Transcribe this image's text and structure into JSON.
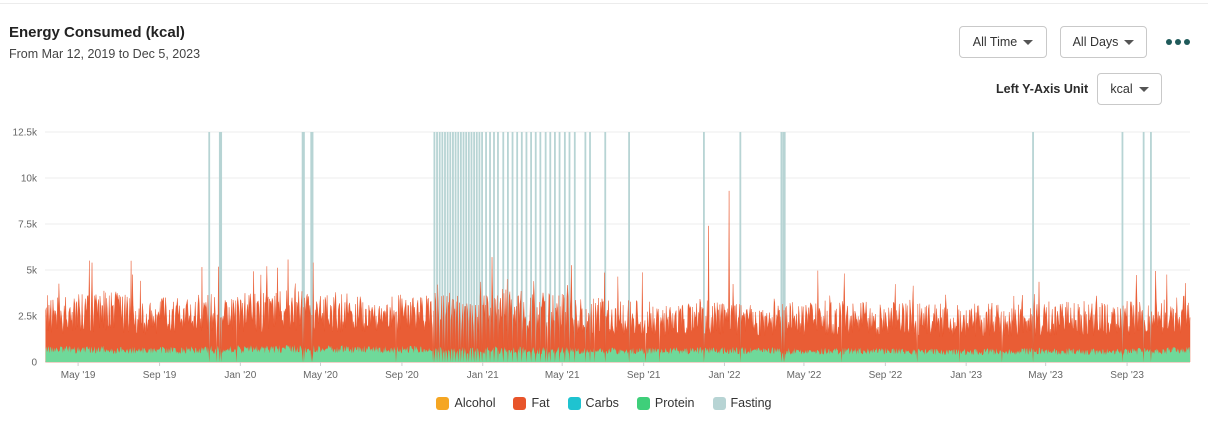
{
  "header": {
    "title": "Energy Consumed (kcal)",
    "subtitle": "From Mar 12, 2019 to Dec 5, 2023"
  },
  "controls": {
    "range_label": "All Time",
    "days_label": "All Days",
    "unit_caption": "Left Y-Axis Unit",
    "unit_label": "kcal"
  },
  "chart_data": {
    "type": "area",
    "stacked": true,
    "title": "Energy Consumed (kcal)",
    "x_start": "2019-03-12",
    "x_end": "2023-12-05",
    "ylim": [
      0,
      12500
    ],
    "y_ticks": [
      {
        "value": 0,
        "label": "0"
      },
      {
        "value": 2500,
        "label": "2.5k"
      },
      {
        "value": 5000,
        "label": "5k"
      },
      {
        "value": 7500,
        "label": "7.5k"
      },
      {
        "value": 10000,
        "label": "10k"
      },
      {
        "value": 12500,
        "label": "12.5k"
      }
    ],
    "x_ticks": [
      {
        "date": "2019-05-01",
        "label": "May '19"
      },
      {
        "date": "2019-09-01",
        "label": "Sep '19"
      },
      {
        "date": "2020-01-01",
        "label": "Jan '20"
      },
      {
        "date": "2020-05-01",
        "label": "May '20"
      },
      {
        "date": "2020-09-01",
        "label": "Sep '20"
      },
      {
        "date": "2021-01-01",
        "label": "Jan '21"
      },
      {
        "date": "2021-05-01",
        "label": "May '21"
      },
      {
        "date": "2021-09-01",
        "label": "Sep '21"
      },
      {
        "date": "2022-01-01",
        "label": "Jan '22"
      },
      {
        "date": "2022-05-01",
        "label": "May '22"
      },
      {
        "date": "2022-09-01",
        "label": "Sep '22"
      },
      {
        "date": "2023-01-01",
        "label": "Jan '23"
      },
      {
        "date": "2023-05-01",
        "label": "May '23"
      },
      {
        "date": "2023-09-01",
        "label": "Sep '23"
      }
    ],
    "grid": true,
    "legend_position": "bottom",
    "series": [
      {
        "name": "Alcohol",
        "color": "#f5a623"
      },
      {
        "name": "Fat",
        "color": "#e8542a"
      },
      {
        "name": "Carbs",
        "color": "#1fc3d0"
      },
      {
        "name": "Protein",
        "color": "#3fcf7a"
      },
      {
        "name": "Fasting",
        "color": "#b7d4d4"
      }
    ],
    "daily_totals": [
      {
        "x": "2019-04-20",
        "y": 2800
      },
      {
        "x": "2019-06-15",
        "y": 3000
      },
      {
        "x": "2019-08-15",
        "y": 2700
      },
      {
        "x": "2019-10-15",
        "y": 2900
      },
      {
        "x": "2019-12-15",
        "y": 2800
      },
      {
        "x": "2020-02-15",
        "y": 3000
      },
      {
        "x": "2020-04-15",
        "y": 3000
      },
      {
        "x": "2020-06-15",
        "y": 2900
      },
      {
        "x": "2020-08-15",
        "y": 2800
      },
      {
        "x": "2020-10-15",
        "y": 2900
      },
      {
        "x": "2020-12-15",
        "y": 2900
      },
      {
        "x": "2021-02-15",
        "y": 3100
      },
      {
        "x": "2021-04-15",
        "y": 2900
      },
      {
        "x": "2021-06-15",
        "y": 2700
      },
      {
        "x": "2021-08-15",
        "y": 2600
      },
      {
        "x": "2021-10-15",
        "y": 2500
      },
      {
        "x": "2021-12-15",
        "y": 2700
      },
      {
        "x": "2022-02-15",
        "y": 2500
      },
      {
        "x": "2022-04-15",
        "y": 2500
      },
      {
        "x": "2022-06-15",
        "y": 2600
      },
      {
        "x": "2022-08-15",
        "y": 2500
      },
      {
        "x": "2022-10-15",
        "y": 2600
      },
      {
        "x": "2022-12-15",
        "y": 2400
      },
      {
        "x": "2023-02-15",
        "y": 2500
      },
      {
        "x": "2023-04-15",
        "y": 2500
      },
      {
        "x": "2023-06-15",
        "y": 2600
      },
      {
        "x": "2023-08-15",
        "y": 2500
      },
      {
        "x": "2023-10-15",
        "y": 2700
      },
      {
        "x": "2023-12-01",
        "y": 2800
      }
    ],
    "daily_protein": [
      {
        "x": "2019-04-20",
        "y": 750
      },
      {
        "x": "2019-08-15",
        "y": 700
      },
      {
        "x": "2019-12-15",
        "y": 750
      },
      {
        "x": "2020-04-15",
        "y": 800
      },
      {
        "x": "2020-08-15",
        "y": 750
      },
      {
        "x": "2020-12-15",
        "y": 700
      },
      {
        "x": "2021-04-15",
        "y": 700
      },
      {
        "x": "2021-08-15",
        "y": 650
      },
      {
        "x": "2021-12-15",
        "y": 700
      },
      {
        "x": "2022-04-15",
        "y": 650
      },
      {
        "x": "2022-08-15",
        "y": 650
      },
      {
        "x": "2022-12-15",
        "y": 600
      },
      {
        "x": "2023-04-15",
        "y": 650
      },
      {
        "x": "2023-08-15",
        "y": 600
      },
      {
        "x": "2023-12-01",
        "y": 700
      }
    ],
    "peaks": [
      {
        "x": "2019-05-22",
        "y": 5400
      },
      {
        "x": "2019-07-20",
        "y": 5500
      },
      {
        "x": "2020-02-10",
        "y": 5200
      },
      {
        "x": "2020-04-20",
        "y": 5400
      },
      {
        "x": "2021-01-15",
        "y": 5700
      },
      {
        "x": "2021-02-01",
        "y": 5500
      },
      {
        "x": "2022-01-08",
        "y": 9300
      },
      {
        "x": "2021-12-08",
        "y": 7400
      },
      {
        "x": "2023-08-25",
        "y": 5700
      }
    ],
    "fasting_days": [
      "2019-11-15",
      "2019-12-01",
      "2019-12-03",
      "2020-04-04",
      "2020-04-06",
      "2020-04-17",
      "2020-04-19",
      "2020-10-20",
      "2020-10-24",
      "2020-10-28",
      "2020-11-01",
      "2020-11-05",
      "2020-11-09",
      "2020-11-13",
      "2020-11-17",
      "2020-11-21",
      "2020-11-25",
      "2020-11-29",
      "2020-12-03",
      "2020-12-07",
      "2020-12-11",
      "2020-12-15",
      "2020-12-19",
      "2020-12-23",
      "2020-12-27",
      "2020-12-31",
      "2021-01-06",
      "2021-01-12",
      "2021-01-18",
      "2021-01-24",
      "2021-02-01",
      "2021-02-08",
      "2021-02-15",
      "2021-02-22",
      "2021-03-01",
      "2021-03-08",
      "2021-03-15",
      "2021-03-22",
      "2021-03-29",
      "2021-04-06",
      "2021-04-13",
      "2021-04-20",
      "2021-04-27",
      "2021-05-05",
      "2021-05-12",
      "2021-05-20",
      "2021-06-05",
      "2021-06-12",
      "2021-07-05",
      "2021-08-10",
      "2021-12-01",
      "2022-01-25",
      "2022-03-28",
      "2022-03-31",
      "2022-04-02",
      "2023-04-12",
      "2023-08-25",
      "2023-09-26",
      "2023-10-07"
    ],
    "series_notes": []
  }
}
